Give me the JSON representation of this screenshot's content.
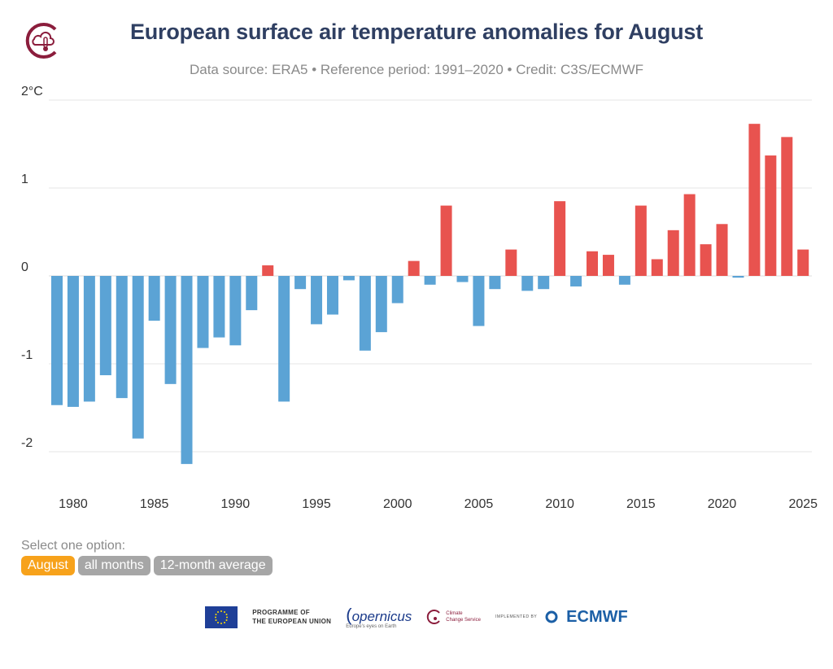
{
  "header": {
    "title": "European surface air temperature anomalies for August",
    "subtitle": "Data source: ERA5 • Reference period: 1991–2020 • Credit: C3S/ECMWF"
  },
  "controls": {
    "label": "Select one option:",
    "options": [
      "August",
      "all months",
      "12-month average"
    ],
    "selected": "August"
  },
  "footer": {
    "programme_line1": "PROGRAMME OF",
    "programme_line2": "THE EUROPEAN UNION",
    "copernicus": "opernicus",
    "copernicus_tagline": "Europe's eyes on Earth",
    "c3s_line1": "Climate",
    "c3s_line2": "Change Service",
    "implemented_by": "IMPLEMENTED BY",
    "ecmwf": "ECMWF"
  },
  "colors": {
    "positive": "#e8534f",
    "negative": "#5ba3d5",
    "grid": "#e6e6e6",
    "title": "#2f3f62",
    "active_option": "#f7a21b",
    "inactive_option": "#a6a6a6",
    "brand": "#8b1d3c"
  },
  "chart_data": {
    "type": "bar",
    "title": "European surface air temperature anomalies for August",
    "xlabel": "",
    "ylabel": "",
    "ylim": [
      -2.3,
      2.0
    ],
    "yticks": [
      -2,
      -1,
      0,
      1,
      2
    ],
    "ytick_labels": [
      "-2",
      "-1",
      "0",
      "1",
      "2°C"
    ],
    "xticks": [
      1980,
      1985,
      1990,
      1995,
      2000,
      2005,
      2010,
      2015,
      2020,
      2025
    ],
    "years": [
      1979,
      1980,
      1981,
      1982,
      1983,
      1984,
      1985,
      1986,
      1987,
      1988,
      1989,
      1990,
      1991,
      1992,
      1993,
      1994,
      1995,
      1996,
      1997,
      1998,
      1999,
      2000,
      2001,
      2002,
      2003,
      2004,
      2005,
      2006,
      2007,
      2008,
      2009,
      2010,
      2011,
      2012,
      2013,
      2014,
      2015,
      2016,
      2017,
      2018,
      2019,
      2020,
      2021,
      2022,
      2023,
      2024,
      2025
    ],
    "values": [
      -1.47,
      -1.49,
      -1.43,
      -1.13,
      -1.39,
      -1.85,
      -0.51,
      -1.23,
      -2.14,
      -0.82,
      -0.7,
      -0.79,
      -0.39,
      0.12,
      -1.43,
      -0.15,
      -0.55,
      -0.44,
      -0.05,
      -0.85,
      -0.64,
      -0.31,
      0.17,
      -0.1,
      0.8,
      -0.07,
      -0.57,
      -0.15,
      0.3,
      -0.17,
      -0.15,
      0.85,
      -0.12,
      0.28,
      0.24,
      -0.1,
      0.8,
      0.19,
      0.52,
      0.93,
      0.36,
      0.59,
      -0.02,
      1.73,
      1.37,
      1.58,
      0.3
    ],
    "grid": true
  }
}
